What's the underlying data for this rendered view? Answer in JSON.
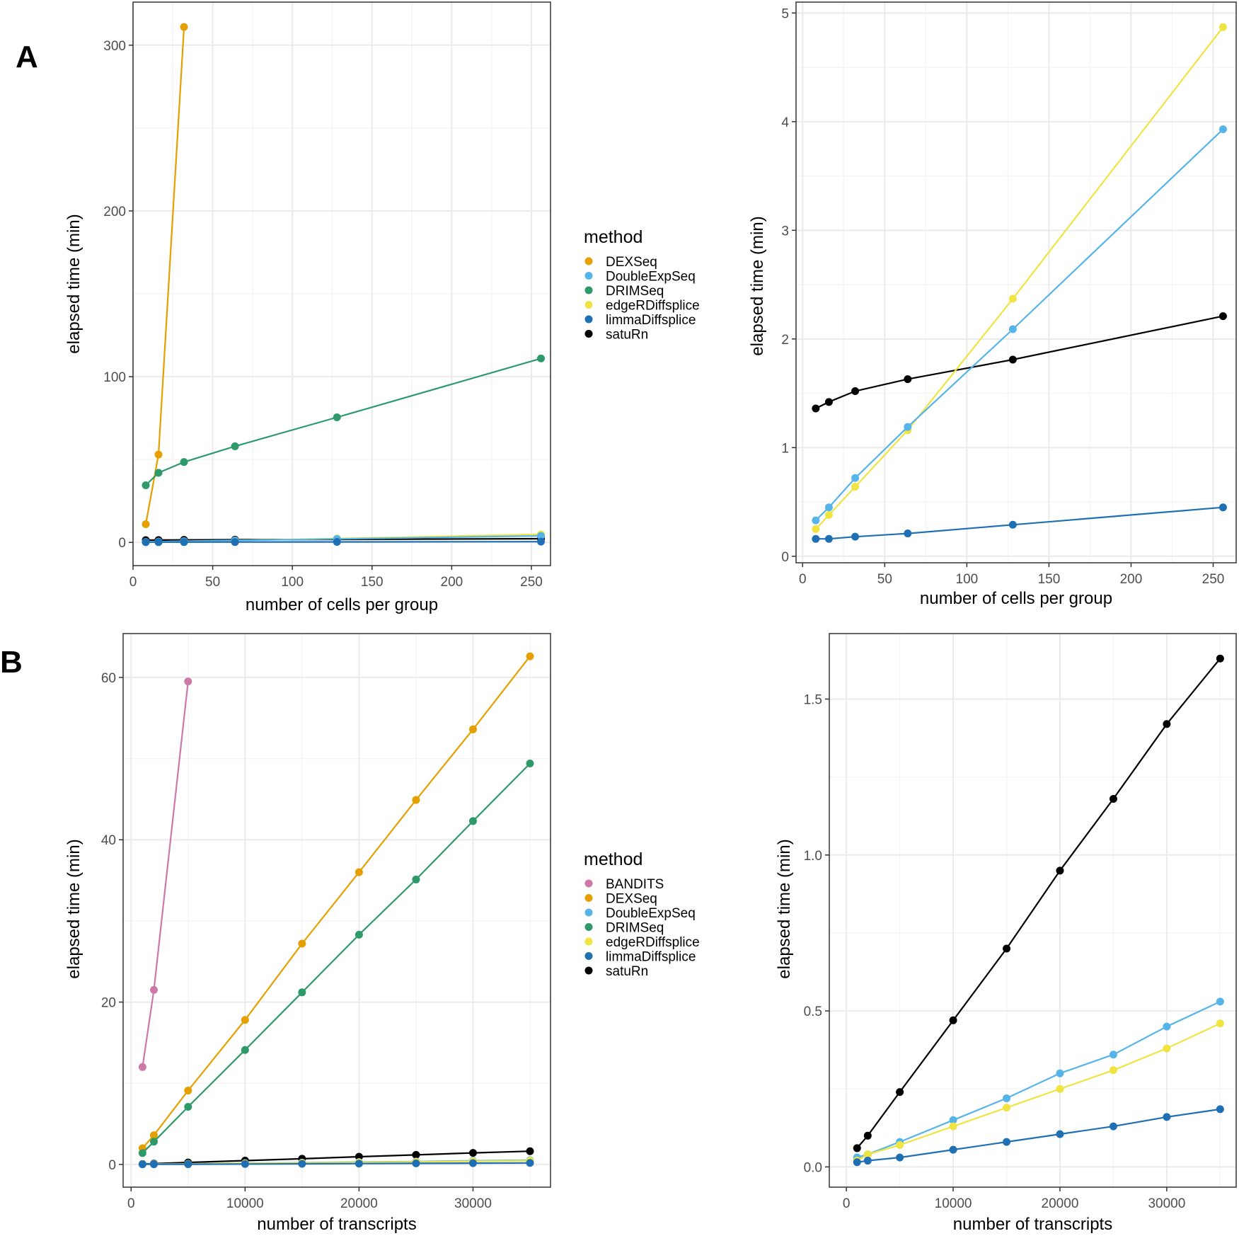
{
  "panel_labels": [
    "A",
    "B"
  ],
  "colors": {
    "BANDITS": "#CC79A7",
    "DEXSeq": "#E69F00",
    "DoubleExpSeq": "#56B4E9",
    "DRIMSeq": "#2E9A6A",
    "edgeRDiffsplice": "#F0E442",
    "limmaDiffsplice": "#1F6FB4",
    "satuRn": "#000000",
    "grid_major": "#ebebeb",
    "grid_minor": "#f5f5f5",
    "panel_border": "#333333"
  },
  "legends": [
    {
      "title": "method",
      "items": [
        "DEXSeq",
        "DoubleExpSeq",
        "DRIMSeq",
        "edgeRDiffsplice",
        "limmaDiffsplice",
        "satuRn"
      ]
    },
    {
      "title": "method",
      "items": [
        "BANDITS",
        "DEXSeq",
        "DoubleExpSeq",
        "DRIMSeq",
        "edgeRDiffsplice",
        "limmaDiffsplice",
        "satuRn"
      ]
    }
  ],
  "chart_data": [
    {
      "type": "line",
      "panel": "A",
      "xlabel": "number of cells per group",
      "ylabel": "elapsed  time (min)",
      "xlim": [
        0,
        262
      ],
      "ylim": [
        -14,
        326
      ],
      "xticks": [
        0,
        50,
        100,
        150,
        200,
        250
      ],
      "yticks": [
        0,
        100,
        200,
        300
      ],
      "grid": true,
      "series": [
        {
          "name": "DEXSeq",
          "x": [
            8,
            16,
            32
          ],
          "y": [
            11,
            53,
            311
          ]
        },
        {
          "name": "DRIMSeq",
          "x": [
            8,
            16,
            32,
            64,
            128,
            256
          ],
          "y": [
            34.5,
            42,
            48.5,
            58,
            75.5,
            111
          ]
        },
        {
          "name": "satuRn",
          "x": [
            8,
            16,
            32,
            64,
            128,
            256
          ],
          "y": [
            1.36,
            1.42,
            1.52,
            1.63,
            1.81,
            2.21
          ]
        },
        {
          "name": "edgeRDiffsplice",
          "x": [
            8,
            16,
            32,
            64,
            128,
            256
          ],
          "y": [
            0.25,
            0.38,
            0.64,
            1.16,
            2.37,
            4.87
          ]
        },
        {
          "name": "DoubleExpSeq",
          "x": [
            8,
            16,
            32,
            64,
            128,
            256
          ],
          "y": [
            0.33,
            0.45,
            0.72,
            1.19,
            2.09,
            3.93
          ]
        },
        {
          "name": "limmaDiffsplice",
          "x": [
            8,
            16,
            32,
            64,
            128,
            256
          ],
          "y": [
            0.16,
            0.16,
            0.18,
            0.21,
            0.29,
            0.45
          ]
        }
      ]
    },
    {
      "type": "line",
      "panel": "A",
      "xlabel": "number of cells per group",
      "ylabel": "elapsed  time (min)",
      "xlim": [
        -4,
        264
      ],
      "ylim": [
        -0.06,
        5.1
      ],
      "xticks": [
        0,
        50,
        100,
        150,
        200,
        250
      ],
      "yticks": [
        0,
        1,
        2,
        3,
        4,
        5
      ],
      "grid": true,
      "series": [
        {
          "name": "satuRn",
          "x": [
            8,
            16,
            32,
            64,
            128,
            256
          ],
          "y": [
            1.36,
            1.42,
            1.52,
            1.63,
            1.81,
            2.21
          ]
        },
        {
          "name": "edgeRDiffsplice",
          "x": [
            8,
            16,
            32,
            64,
            128,
            256
          ],
          "y": [
            0.25,
            0.38,
            0.64,
            1.16,
            2.37,
            4.87
          ]
        },
        {
          "name": "DoubleExpSeq",
          "x": [
            8,
            16,
            32,
            64,
            128,
            256
          ],
          "y": [
            0.33,
            0.45,
            0.72,
            1.19,
            2.09,
            3.93
          ]
        },
        {
          "name": "limmaDiffsplice",
          "x": [
            8,
            16,
            32,
            64,
            128,
            256
          ],
          "y": [
            0.16,
            0.16,
            0.18,
            0.21,
            0.29,
            0.45
          ]
        }
      ]
    },
    {
      "type": "line",
      "panel": "B",
      "xlabel": "number of transcripts",
      "ylabel": "elapsed  time (min)",
      "xlim": [
        -700,
        36800
      ],
      "ylim": [
        -2.8,
        65.4
      ],
      "xticks": [
        0,
        10000,
        20000,
        30000
      ],
      "yticks": [
        0,
        20,
        40,
        60
      ],
      "grid": true,
      "series": [
        {
          "name": "BANDITS",
          "x": [
            1000,
            2000,
            5000
          ],
          "y": [
            12,
            21.5,
            59.5
          ]
        },
        {
          "name": "DEXSeq",
          "x": [
            1000,
            2000,
            5000,
            10000,
            15000,
            20000,
            25000,
            30000,
            35000
          ],
          "y": [
            2,
            3.6,
            9.1,
            17.8,
            27.2,
            36,
            44.9,
            53.6,
            62.6
          ]
        },
        {
          "name": "DRIMSeq",
          "x": [
            1000,
            2000,
            5000,
            10000,
            15000,
            20000,
            25000,
            30000,
            35000
          ],
          "y": [
            1.4,
            2.8,
            7.1,
            14.1,
            21.2,
            28.3,
            35.1,
            42.3,
            49.4
          ]
        },
        {
          "name": "satuRn",
          "x": [
            1000,
            2000,
            5000,
            10000,
            15000,
            20000,
            25000,
            30000,
            35000
          ],
          "y": [
            0.06,
            0.1,
            0.24,
            0.47,
            0.7,
            0.95,
            1.18,
            1.42,
            1.63
          ]
        },
        {
          "name": "DoubleExpSeq",
          "x": [
            1000,
            2000,
            5000,
            10000,
            15000,
            20000,
            25000,
            30000,
            35000
          ],
          "y": [
            0.03,
            0.04,
            0.08,
            0.15,
            0.22,
            0.3,
            0.36,
            0.45,
            0.53
          ]
        },
        {
          "name": "edgeRDiffsplice",
          "x": [
            1000,
            2000,
            5000,
            10000,
            15000,
            20000,
            25000,
            30000,
            35000
          ],
          "y": [
            0.02,
            0.04,
            0.07,
            0.13,
            0.19,
            0.25,
            0.31,
            0.38,
            0.46
          ]
        },
        {
          "name": "limmaDiffsplice",
          "x": [
            1000,
            2000,
            5000,
            10000,
            15000,
            20000,
            25000,
            30000,
            35000
          ],
          "y": [
            0.015,
            0.02,
            0.03,
            0.055,
            0.08,
            0.105,
            0.13,
            0.16,
            0.185
          ]
        }
      ]
    },
    {
      "type": "line",
      "panel": "B",
      "xlabel": "number of transcripts",
      "ylabel": "elapsed  time (min)",
      "xlim": [
        -1600,
        36500
      ],
      "ylim": [
        -0.065,
        1.71
      ],
      "xticks": [
        0,
        10000,
        20000,
        30000
      ],
      "yticks": [
        0.0,
        0.5,
        1.0,
        1.5
      ],
      "ytick_labels": [
        "0.0",
        "0.5",
        "1.0",
        "1.5"
      ],
      "grid": true,
      "series": [
        {
          "name": "satuRn",
          "x": [
            1000,
            2000,
            5000,
            10000,
            15000,
            20000,
            25000,
            30000,
            35000
          ],
          "y": [
            0.06,
            0.1,
            0.24,
            0.47,
            0.7,
            0.95,
            1.18,
            1.42,
            1.63
          ]
        },
        {
          "name": "DoubleExpSeq",
          "x": [
            1000,
            2000,
            5000,
            10000,
            15000,
            20000,
            25000,
            30000,
            35000
          ],
          "y": [
            0.03,
            0.04,
            0.08,
            0.15,
            0.22,
            0.3,
            0.36,
            0.45,
            0.53
          ]
        },
        {
          "name": "edgeRDiffsplice",
          "x": [
            1000,
            2000,
            5000,
            10000,
            15000,
            20000,
            25000,
            30000,
            35000
          ],
          "y": [
            0.02,
            0.04,
            0.07,
            0.13,
            0.19,
            0.25,
            0.31,
            0.38,
            0.46
          ]
        },
        {
          "name": "limmaDiffsplice",
          "x": [
            1000,
            2000,
            5000,
            10000,
            15000,
            20000,
            25000,
            30000,
            35000
          ],
          "y": [
            0.015,
            0.02,
            0.03,
            0.055,
            0.08,
            0.105,
            0.13,
            0.16,
            0.185
          ]
        }
      ]
    }
  ]
}
